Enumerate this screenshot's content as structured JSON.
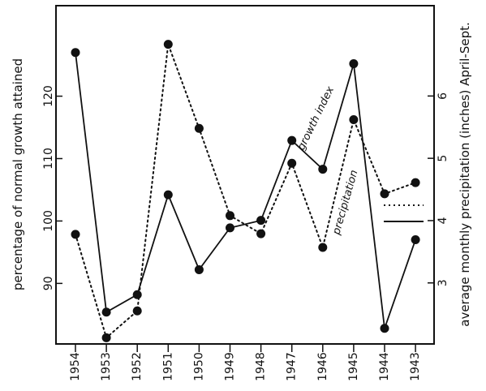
{
  "chart_data": {
    "type": "line",
    "title": "",
    "xlabel": "",
    "ylabel_left": "percentage of normal growth attained",
    "ylabel_right": "average monthly precipitation (inches) April-Sept.",
    "categories": [
      "1954",
      "1953",
      "1952",
      "1951",
      "1950",
      "1949",
      "1948",
      "1947",
      "1946",
      "1945",
      "1944",
      "1943"
    ],
    "y_left_ticks": [
      "90",
      "100",
      "110",
      "120"
    ],
    "y_right_ticks": [
      "3",
      "4",
      "5",
      "6"
    ],
    "y_left_range": [
      80.3,
      134.5
    ],
    "y_right_range": [
      2.02,
      7.45
    ],
    "series": [
      {
        "name": "growth index",
        "axis": "left",
        "style": "solid",
        "color": "#111111",
        "values": [
          127,
          85.4,
          88.2,
          104.2,
          92.2,
          98.9,
          100.1,
          112.9,
          108.3,
          125.2,
          82.8,
          97
        ]
      },
      {
        "name": "precipitation",
        "axis": "right",
        "style": "dotted",
        "color": "#111111",
        "values": [
          3.78,
          2.12,
          2.55,
          6.83,
          5.48,
          4.08,
          3.79,
          4.92,
          3.57,
          5.62,
          4.43,
          4.61
        ]
      }
    ],
    "grid": false,
    "legend": "right, beside 1944 (dotted = precipitation, solid = growth index)"
  }
}
